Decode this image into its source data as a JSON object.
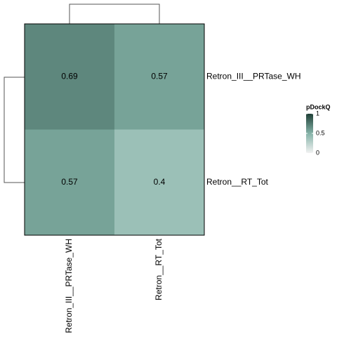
{
  "chart_data": {
    "type": "heatmap",
    "rows": [
      "Retron_III__PRTase_WH",
      "Retron__RT_Tot"
    ],
    "columns": [
      "Retron_III__PRTase_WH",
      "Retron__RT_Tot"
    ],
    "values": [
      [
        0.69,
        0.57
      ],
      [
        0.57,
        0.4
      ]
    ],
    "legend_title": "pDockQ",
    "clim": [
      0,
      1
    ],
    "cticks": [
      0,
      0.5,
      1
    ],
    "colorscale": [
      "#f2f2f2",
      "#85b3a8",
      "#1f3f36"
    ],
    "legend": "right"
  }
}
